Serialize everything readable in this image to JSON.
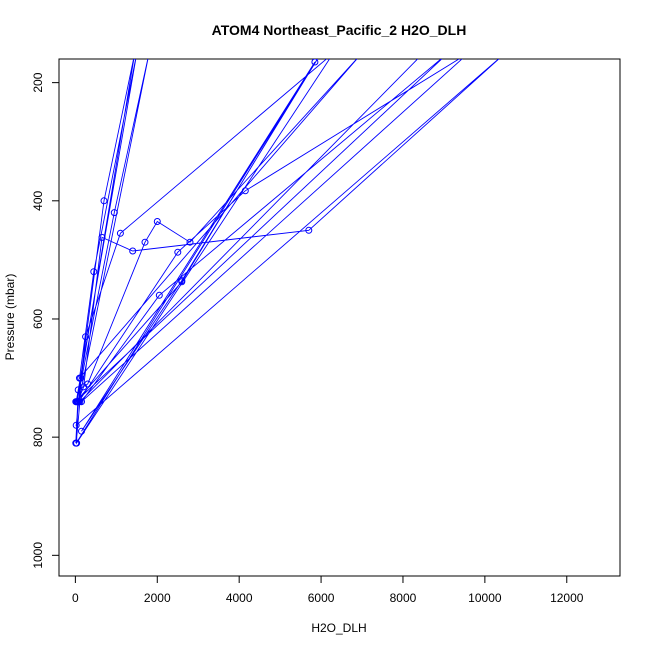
{
  "chart_data": {
    "type": "line",
    "title": "ATOM4 Northeast_Pacific_2 H2O_DLH",
    "xlabel": "H2O_DLH",
    "ylabel": "Pressure (mbar)",
    "xlim": [
      -400,
      13300
    ],
    "ylim": [
      1035,
      160
    ],
    "y_reversed": true,
    "xticks": [
      0,
      2000,
      4000,
      6000,
      8000,
      10000,
      12000
    ],
    "yticks": [
      200,
      400,
      600,
      800,
      1000
    ],
    "grid": false,
    "legend": "none",
    "series": [
      {
        "points": [
          [
            10,
            810
          ],
          [
            60,
            740
          ],
          [
            200,
            715
          ],
          [
            650,
            462
          ],
          [
            1400,
            485
          ],
          [
            5700,
            450
          ],
          [
            10500,
            150
          ],
          [
            20,
            780
          ],
          [
            80,
            740
          ],
          [
            250,
            630
          ],
          [
            1100,
            455
          ],
          [
            6300,
            150
          ],
          [
            30,
            810
          ],
          [
            70,
            720
          ],
          [
            300,
            710
          ],
          [
            1700,
            470
          ],
          [
            2000,
            435
          ],
          [
            2800,
            470
          ],
          [
            7000,
            150
          ],
          [
            100,
            700
          ],
          [
            450,
            520
          ],
          [
            1500,
            150
          ],
          [
            20,
            740
          ],
          [
            130,
            700
          ],
          [
            700,
            400
          ],
          [
            1450,
            150
          ],
          [
            40,
            740
          ],
          [
            950,
            420
          ],
          [
            1800,
            150
          ],
          [
            80,
            740
          ],
          [
            2500,
            487
          ],
          [
            4150,
            383
          ],
          [
            9600,
            150
          ],
          [
            150,
            740
          ],
          [
            2050,
            560
          ],
          [
            9100,
            150
          ],
          [
            10,
            740
          ],
          [
            2600,
            537
          ],
          [
            5850,
            165
          ],
          [
            150,
            790
          ],
          [
            2600,
            535
          ],
          [
            6000,
            150
          ],
          [
            20,
            810
          ],
          [
            110,
            740
          ],
          [
            8500,
            150
          ]
        ]
      }
    ]
  },
  "colors": {
    "series": "#0000ff",
    "axis": "#000000",
    "background": "#ffffff"
  }
}
